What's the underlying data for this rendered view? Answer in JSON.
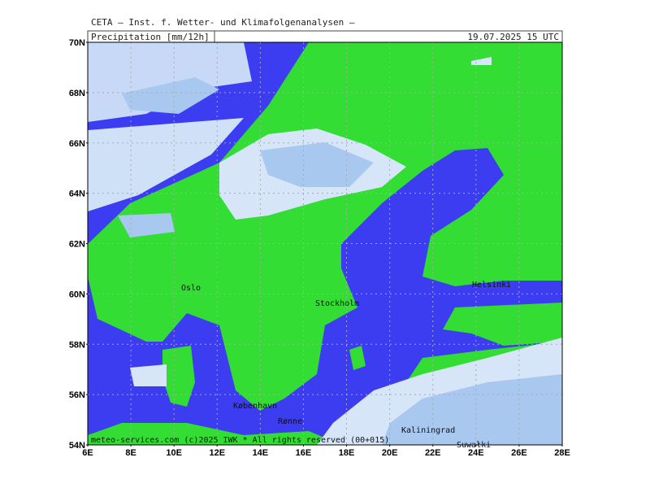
{
  "header": {
    "title": "CETA — Inst. f. Wetter- und Klimafolgenanalysen —",
    "field": "Precipitation [mm/12h]",
    "valid": "19.07.2025 15 UTC"
  },
  "axes": {
    "lat_labels": [
      "70N",
      "68N",
      "66N",
      "64N",
      "62N",
      "60N",
      "58N",
      "56N",
      "54N"
    ],
    "lon_labels": [
      "6E",
      "8E",
      "10E",
      "12E",
      "14E",
      "16E",
      "18E",
      "20E",
      "22E",
      "24E",
      "26E",
      "28E"
    ]
  },
  "cities": [
    {
      "name": "Oslo"
    },
    {
      "name": "Stockholm"
    },
    {
      "name": "Helsinki"
    },
    {
      "name": "København"
    },
    {
      "name": "Rønne"
    },
    {
      "name": "Kaliningrad"
    },
    {
      "name": "Suwałki"
    }
  ],
  "footer": "meteo-services.com (c)2025 IWK * All rights reserved (00+015)"
}
